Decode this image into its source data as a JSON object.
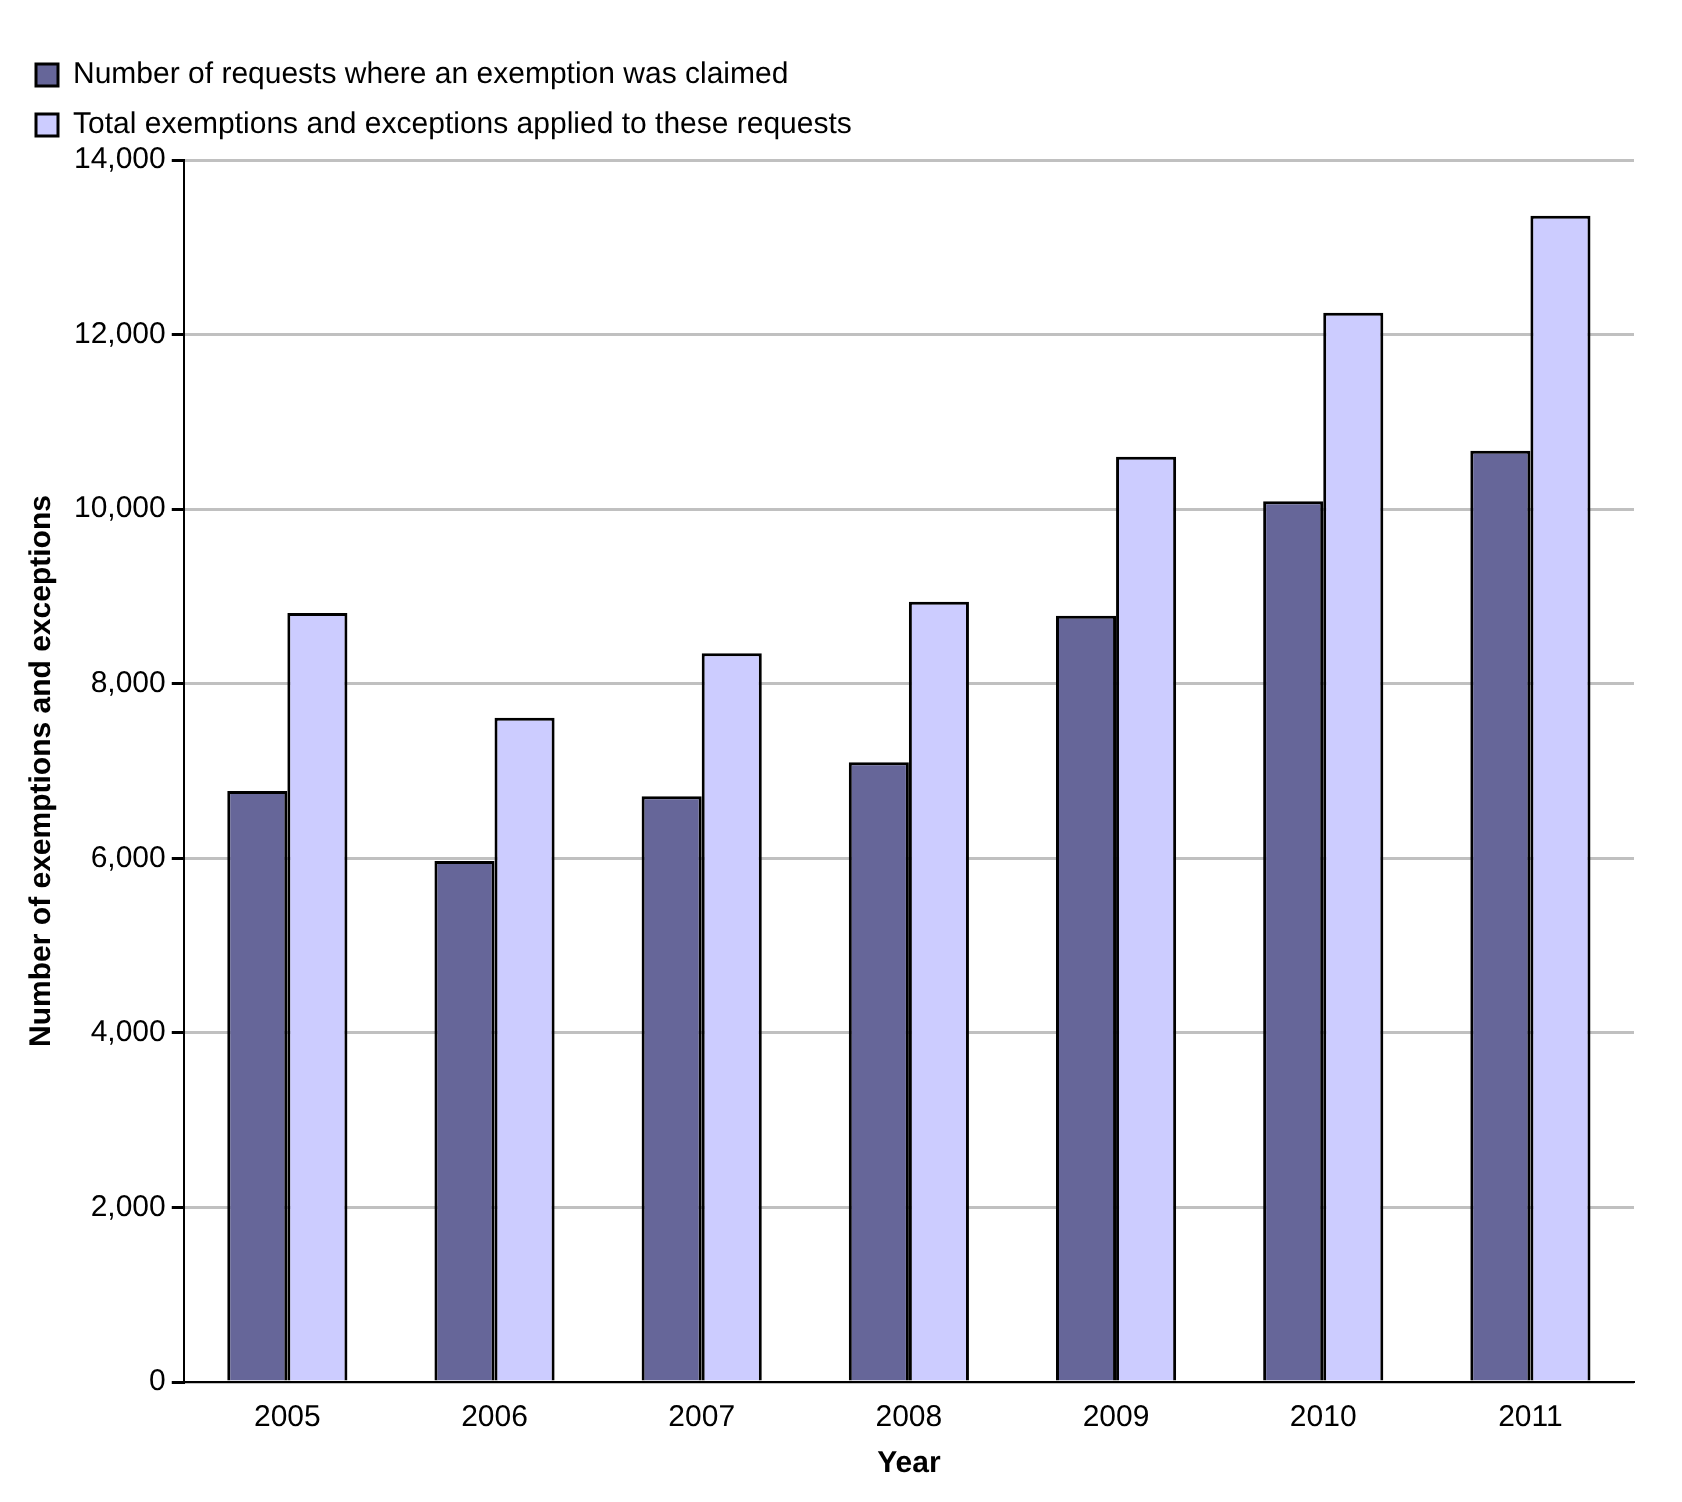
{
  "chart_data": {
    "type": "bar",
    "xlabel": "Year",
    "ylabel": "Number of exemptions and exceptions",
    "categories": [
      "2005",
      "2006",
      "2007",
      "2008",
      "2009",
      "2010",
      "2011"
    ],
    "series": [
      {
        "name": "Number of requests where an exemption was claimed",
        "color": "#666699",
        "values": [
          6770,
          5970,
          6710,
          7100,
          8780,
          10090,
          10670
        ]
      },
      {
        "name": "Total exemptions and exceptions applied to these requests",
        "color": "#ccccff",
        "values": [
          8810,
          7610,
          8350,
          8940,
          10600,
          12250,
          13360
        ]
      }
    ],
    "ylim": [
      0,
      14000
    ],
    "yticks": [
      {
        "value": 0,
        "label": "0"
      },
      {
        "value": 2000,
        "label": "2,000"
      },
      {
        "value": 4000,
        "label": "4,000"
      },
      {
        "value": 6000,
        "label": "6,000"
      },
      {
        "value": 8000,
        "label": "8,000"
      },
      {
        "value": 10000,
        "label": "10,000"
      },
      {
        "value": 12000,
        "label": "12,000"
      },
      {
        "value": 14000,
        "label": "14,000"
      }
    ],
    "grid": "y",
    "legend": "top left"
  }
}
